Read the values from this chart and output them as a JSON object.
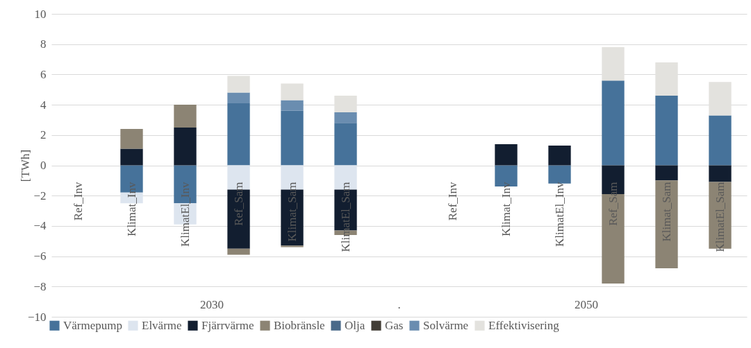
{
  "chart_data": {
    "type": "bar",
    "stacked": true,
    "ylabel": "[TWh]",
    "categories": [
      "Ref_Inv",
      "Klimat_Inv",
      "KlimatEl_Inv",
      "Ref_Sam",
      "Klimat_Sam",
      "KlimatEl_Sam",
      null,
      "Ref_Inv",
      "Klimat_Inv",
      "KlimatEl_Inv",
      "Ref_Sam",
      "Klimat_Sam",
      "KlimatEl_Sam"
    ],
    "annotations": [
      "2030",
      ".",
      "2050"
    ],
    "series": [
      {
        "name": "Värmepump",
        "color": "#46729a",
        "values": [
          null,
          -1.8,
          -2.5,
          4.1,
          3.6,
          2.8,
          null,
          null,
          -1.4,
          -1.2,
          5.6,
          4.6,
          3.3
        ]
      },
      {
        "name": "Elvärme",
        "color": "#dde5ef",
        "values": [
          null,
          -0.7,
          -1.4,
          -1.6,
          -1.6,
          -1.6,
          null,
          null,
          null,
          null,
          null,
          null,
          null
        ]
      },
      {
        "name": "Fjärrvärme",
        "color": "#121e30",
        "values": [
          null,
          1.1,
          2.5,
          -3.9,
          -3.7,
          -2.7,
          null,
          null,
          1.4,
          1.3,
          -1.9,
          -1.0,
          -1.1
        ]
      },
      {
        "name": "Biobränsle",
        "color": "#8c8474",
        "values": [
          null,
          1.3,
          1.5,
          -0.4,
          -0.1,
          -0.3,
          null,
          null,
          null,
          null,
          -5.9,
          -5.8,
          -4.4
        ]
      },
      {
        "name": "Olja",
        "color": "#4a6a8a",
        "values": [
          null,
          null,
          null,
          null,
          null,
          null,
          null,
          null,
          null,
          null,
          null,
          null,
          null
        ]
      },
      {
        "name": "Gas",
        "color": "#423d36",
        "values": [
          null,
          null,
          null,
          null,
          null,
          null,
          null,
          null,
          null,
          null,
          null,
          null,
          null
        ]
      },
      {
        "name": "Solvärme",
        "color": "#6a8db0",
        "values": [
          null,
          null,
          null,
          0.7,
          0.7,
          0.7,
          null,
          null,
          null,
          null,
          null,
          null,
          null
        ]
      },
      {
        "name": "Effektivisering",
        "color": "#e3e2de",
        "values": [
          null,
          null,
          null,
          1.1,
          1.1,
          1.1,
          null,
          null,
          null,
          null,
          2.2,
          2.2,
          2.2
        ]
      }
    ],
    "ylim": [
      -10,
      10
    ],
    "yticks": [
      -10,
      -8,
      -6,
      -4,
      -2,
      0,
      2,
      4,
      6,
      8,
      10
    ],
    "grid": "y",
    "legend": "bottom"
  }
}
